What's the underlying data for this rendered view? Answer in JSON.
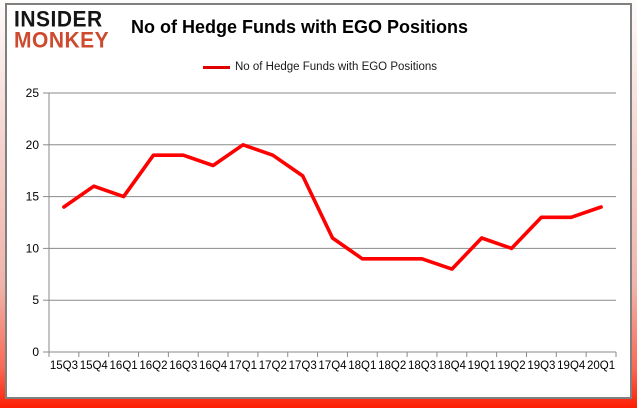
{
  "logo": {
    "line1": "INSIDER",
    "line2": "MONKEY",
    "color_red": "#cd4a2e"
  },
  "header": {
    "title": "No of Hedge Funds with EGO Positions"
  },
  "legend": {
    "label": "No of Hedge Funds with EGO Positions"
  },
  "chart_data": {
    "type": "line",
    "title": "No of Hedge Funds with EGO Positions",
    "categories": [
      "15Q3",
      "15Q4",
      "16Q1",
      "16Q2",
      "16Q3",
      "16Q4",
      "17Q1",
      "17Q2",
      "17Q3",
      "17Q4",
      "18Q1",
      "18Q2",
      "18Q3",
      "18Q4",
      "19Q1",
      "19Q2",
      "19Q3",
      "19Q4",
      "20Q1"
    ],
    "values": [
      14,
      16,
      15,
      19,
      19,
      18,
      20,
      19,
      17,
      11,
      9,
      9,
      9,
      8,
      11,
      10,
      13,
      13,
      14
    ],
    "series_name": "No of Hedge Funds with EGO Positions",
    "xlabel": "",
    "ylabel": "",
    "ylim": [
      0,
      25
    ],
    "yticks": [
      0,
      5,
      10,
      15,
      20,
      25
    ],
    "grid": true,
    "legend_position": "top-center",
    "line_color": "#fe0000",
    "grid_color": "#8a8a8a",
    "axis_text_color": "#000000",
    "frame_border_color": "#fc1e04"
  }
}
